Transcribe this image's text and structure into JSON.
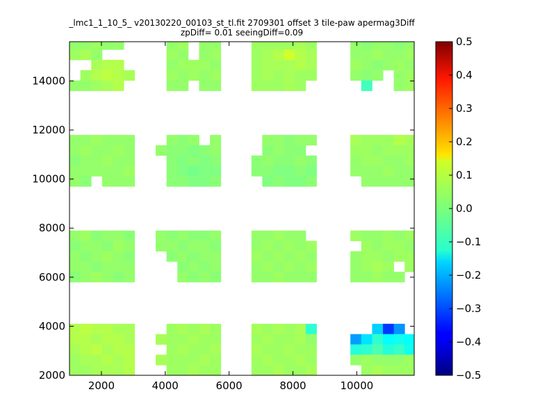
{
  "chart_data": {
    "type": "heatmap",
    "title": "_lmc1_1_10_5_ v20130220_00103_st_tl.fit 2709301 offset 3 tile-paw apermag3Diff",
    "subtitle": "zpDiff= 0.01 seeingDiff=0.09",
    "xlabel": "",
    "ylabel": "",
    "xlim": [
      1000,
      11800
    ],
    "ylim": [
      2000,
      15600
    ],
    "x_ticks": [
      "2000",
      "4000",
      "6000",
      "8000",
      "10000"
    ],
    "y_ticks": [
      "2000",
      "4000",
      "6000",
      "8000",
      "10000",
      "12000",
      "14000"
    ],
    "grid": false,
    "colormap": "jet",
    "colorbar": {
      "min": -0.5,
      "max": 0.5,
      "ticks": [
        "0.5",
        "0.4",
        "0.3",
        "0.2",
        "0.1",
        "0.0",
        "−0.1",
        "−0.2",
        "−0.3",
        "−0.4",
        "−0.5"
      ]
    },
    "cell_size": [
      340,
      420
    ],
    "tiles": [
      {
        "x0": 1000,
        "y0": 5800,
        "cols": 6,
        "rows": 5,
        "values": [
          [
            0.02,
            0.03,
            0.01,
            0.02,
            0.02,
            0.01
          ],
          [
            0.01,
            0.02,
            0.02,
            0.01,
            0.03,
            0.02
          ],
          [
            0.02,
            0.01,
            0.02,
            0.03,
            0.02,
            0.01
          ],
          [
            0.02,
            0.02,
            0.01,
            0.02,
            0.02,
            0.02
          ],
          [
            0.01,
            0.02,
            0.03,
            0.02,
            0.01,
            0.02
          ]
        ]
      },
      {
        "x0": 1000,
        "y0": 9700,
        "cols": 6,
        "rows": 5,
        "values": [
          [
            0.02,
            0.02,
            0.03,
            0.02,
            0.02,
            0.02
          ],
          [
            0.02,
            0.03,
            0.02,
            0.02,
            0.03,
            0.02
          ],
          [
            0.01,
            0.02,
            0.02,
            0.03,
            0.02,
            0.02
          ],
          [
            0.02,
            0.02,
            0.02,
            0.02,
            0.02,
            0.03
          ],
          [
            0.02,
            0.01,
            null,
            0.02,
            0.02,
            0.02
          ]
        ]
      },
      {
        "x0": 1000,
        "y0": 13600,
        "cols": 6,
        "rows": 5,
        "values": [
          [
            0.02,
            0.02,
            0.03,
            0.02,
            0.02,
            null
          ],
          [
            0.03,
            0.04,
            0.02,
            null,
            null,
            null
          ],
          [
            null,
            null,
            0.04,
            0.05,
            0.05,
            null
          ],
          [
            null,
            0.03,
            0.05,
            0.06,
            0.05,
            0.04
          ],
          [
            0.02,
            0.02,
            0.03,
            0.04,
            0.05,
            null
          ]
        ]
      },
      {
        "x0": 1000,
        "y0": 2000,
        "cols": 6,
        "rows": 5,
        "values": [
          [
            0.05,
            0.06,
            0.05,
            0.05,
            0.04,
            0.04
          ],
          [
            0.05,
            0.05,
            0.04,
            0.05,
            0.05,
            0.04
          ],
          [
            0.04,
            0.05,
            0.06,
            0.04,
            0.05,
            0.05
          ],
          [
            0.03,
            0.04,
            0.04,
            0.05,
            0.04,
            0.05
          ],
          [
            0.03,
            0.03,
            0.04,
            0.04,
            0.04,
            0.05
          ]
        ]
      },
      {
        "x0": 3700,
        "y0": 5800,
        "cols": 6,
        "rows": 5,
        "values": [
          [
            0.02,
            0.01,
            0.02,
            0.01,
            0.01,
            0.02
          ],
          [
            0.02,
            0.02,
            0.01,
            0.02,
            0.02,
            0.01
          ],
          [
            null,
            0.01,
            0.02,
            0.01,
            0.02,
            0.02
          ],
          [
            null,
            null,
            0.01,
            0.02,
            0.01,
            0.02
          ],
          [
            null,
            null,
            0.02,
            0.01,
            0.02,
            0.01
          ]
        ]
      },
      {
        "x0": 3700,
        "y0": 9700,
        "cols": 6,
        "rows": 5,
        "values": [
          [
            null,
            0.02,
            0.01,
            0.02,
            null,
            0.02
          ],
          [
            0.02,
            0.01,
            0.01,
            0.0,
            0.01,
            0.02
          ],
          [
            null,
            0.01,
            0.0,
            0.01,
            0.0,
            0.01
          ],
          [
            null,
            0.01,
            0.0,
            -0.01,
            0.0,
            0.0
          ],
          [
            null,
            0.01,
            0.01,
            0.0,
            0.0,
            0.01
          ]
        ]
      },
      {
        "x0": 3700,
        "y0": 13600,
        "cols": 6,
        "rows": 5,
        "values": [
          [
            null,
            0.02,
            0.03,
            null,
            0.02,
            0.02
          ],
          [
            null,
            0.03,
            0.02,
            null,
            0.02,
            0.03
          ],
          [
            null,
            0.02,
            0.03,
            0.03,
            0.03,
            0.02
          ],
          [
            null,
            0.03,
            0.02,
            0.03,
            0.02,
            0.03
          ],
          [
            null,
            0.02,
            0.02,
            null,
            0.02,
            0.02
          ]
        ]
      },
      {
        "x0": 3700,
        "y0": 2000,
        "cols": 6,
        "rows": 5,
        "values": [
          [
            null,
            0.03,
            0.04,
            0.03,
            0.04,
            0.03
          ],
          [
            0.04,
            0.03,
            0.03,
            0.04,
            0.03,
            0.03
          ],
          [
            null,
            0.03,
            0.04,
            0.03,
            0.03,
            0.04
          ],
          [
            0.04,
            0.03,
            0.03,
            0.03,
            0.04,
            0.03
          ],
          [
            null,
            0.03,
            0.03,
            0.04,
            0.03,
            0.03
          ]
        ]
      },
      {
        "x0": 6700,
        "y0": 5800,
        "cols": 6,
        "rows": 5,
        "values": [
          [
            0.02,
            0.02,
            0.03,
            0.02,
            0.02,
            null
          ],
          [
            0.02,
            0.03,
            0.02,
            0.03,
            0.02,
            0.03
          ],
          [
            0.03,
            0.02,
            0.03,
            0.02,
            0.03,
            0.02
          ],
          [
            0.02,
            0.03,
            0.02,
            0.03,
            0.02,
            0.03
          ],
          [
            0.02,
            0.02,
            0.03,
            0.02,
            0.02,
            0.02
          ]
        ]
      },
      {
        "x0": 6700,
        "y0": 9700,
        "cols": 6,
        "rows": 5,
        "values": [
          [
            null,
            0.02,
            0.02,
            0.01,
            0.02,
            0.02
          ],
          [
            null,
            0.01,
            0.02,
            0.01,
            0.01,
            null
          ],
          [
            0.01,
            0.02,
            0.01,
            0.01,
            0.02,
            0.01
          ],
          [
            0.01,
            0.01,
            0.0,
            0.0,
            0.01,
            0.0
          ],
          [
            null,
            0.0,
            0.01,
            0.0,
            0.0,
            0.01
          ]
        ]
      },
      {
        "x0": 6700,
        "y0": 13600,
        "cols": 6,
        "rows": 5,
        "values": [
          [
            0.03,
            0.03,
            0.03,
            0.03,
            0.04,
            0.03
          ],
          [
            0.03,
            0.04,
            0.05,
            0.08,
            0.05,
            0.04
          ],
          [
            0.03,
            0.04,
            0.04,
            0.04,
            0.05,
            0.04
          ],
          [
            0.03,
            0.04,
            0.03,
            0.04,
            0.03,
            0.03
          ],
          [
            0.03,
            0.03,
            0.03,
            0.04,
            0.03,
            null
          ]
        ]
      },
      {
        "x0": 6700,
        "y0": 2000,
        "cols": 6,
        "rows": 5,
        "values": [
          [
            0.04,
            0.03,
            0.04,
            0.03,
            0.04,
            -0.08
          ],
          [
            0.03,
            0.04,
            0.03,
            0.03,
            0.04,
            0.02
          ],
          [
            0.04,
            0.03,
            0.03,
            0.04,
            0.03,
            0.03
          ],
          [
            0.03,
            0.04,
            0.03,
            0.03,
            0.04,
            0.03
          ],
          [
            0.03,
            0.03,
            0.04,
            0.03,
            0.03,
            0.04
          ]
        ]
      },
      {
        "x0": 9800,
        "y0": 5800,
        "cols": 6,
        "rows": 5,
        "values": [
          [
            0.03,
            0.02,
            0.02,
            0.03,
            0.02,
            0.03
          ],
          [
            null,
            0.03,
            0.02,
            0.03,
            0.03,
            0.02
          ],
          [
            0.02,
            0.03,
            0.03,
            0.02,
            0.03,
            0.03
          ],
          [
            0.02,
            0.03,
            0.04,
            0.03,
            null,
            0.03
          ],
          [
            0.02,
            0.02,
            0.03,
            0.02,
            0.02,
            null
          ]
        ]
      },
      {
        "x0": 9800,
        "y0": 9700,
        "cols": 6,
        "rows": 5,
        "values": [
          [
            0.04,
            0.03,
            0.03,
            0.03,
            0.05,
            0.04
          ],
          [
            0.03,
            0.03,
            0.02,
            0.03,
            0.03,
            0.03
          ],
          [
            0.02,
            0.03,
            0.03,
            0.02,
            0.02,
            0.03
          ],
          [
            0.02,
            0.02,
            0.02,
            0.03,
            0.02,
            0.02
          ],
          [
            null,
            0.02,
            0.02,
            0.02,
            0.02,
            0.02
          ]
        ]
      },
      {
        "x0": 9800,
        "y0": 13600,
        "cols": 6,
        "rows": 5,
        "values": [
          [
            0.02,
            0.01,
            0.02,
            0.02,
            0.01,
            0.02
          ],
          [
            0.02,
            0.02,
            0.03,
            0.02,
            0.02,
            0.03
          ],
          [
            0.03,
            0.02,
            0.01,
            0.02,
            0.03,
            0.02
          ],
          [
            0.02,
            0.01,
            0.02,
            null,
            0.02,
            0.03
          ],
          [
            null,
            -0.06,
            null,
            null,
            0.02,
            0.03
          ]
        ]
      },
      {
        "x0": 9800,
        "y0": 2000,
        "cols": 6,
        "rows": 5,
        "values": [
          [
            null,
            null,
            -0.17,
            -0.32,
            -0.23,
            null
          ],
          [
            -0.22,
            -0.15,
            -0.08,
            -0.12,
            -0.11,
            -0.12
          ],
          [
            -0.09,
            -0.08,
            -0.05,
            -0.09,
            -0.07,
            -0.11
          ],
          [
            0.02,
            0.03,
            0.02,
            0.02,
            0.02,
            0.03
          ],
          [
            null,
            0.03,
            0.04,
            0.03,
            0.03,
            0.03
          ]
        ]
      }
    ]
  }
}
